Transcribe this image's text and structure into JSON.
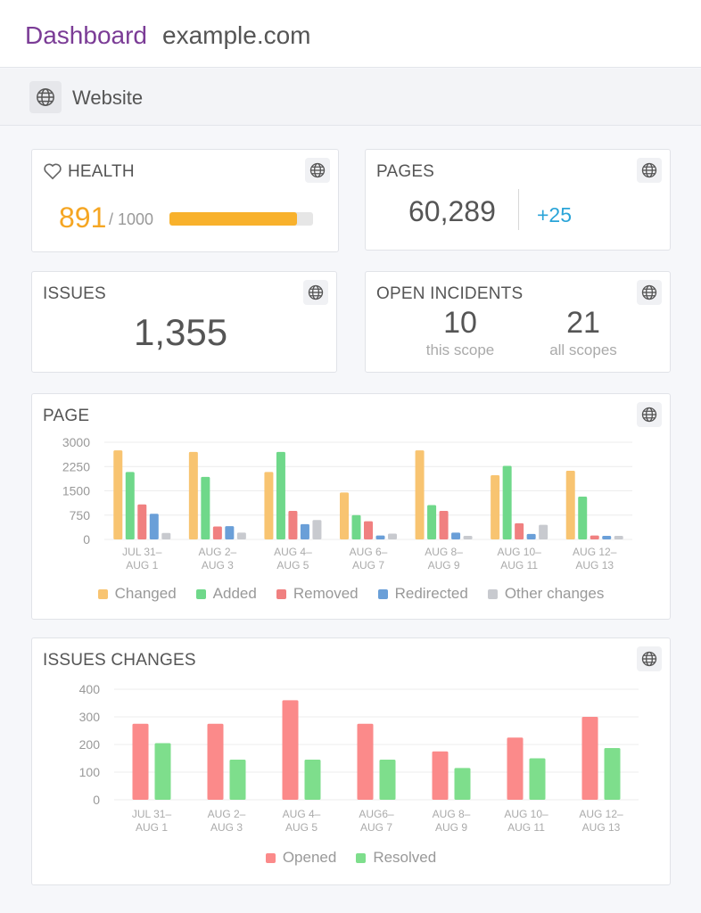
{
  "header": {
    "brand": "Dashboard",
    "domain": "example.com"
  },
  "subheader": {
    "label": "Website",
    "icon": "globe-icon"
  },
  "health": {
    "title": "HEALTH",
    "score": "891",
    "max_label": "/ 1000",
    "progress": 0.891,
    "color": "#f5a623",
    "icon": "heart-icon"
  },
  "pages": {
    "title": "PAGES",
    "count": "60,289",
    "delta": "+25"
  },
  "issues": {
    "title": "ISSUES",
    "count": "1,355"
  },
  "incidents": {
    "title": "OPEN INCIDENTS",
    "this_scope_value": "10",
    "this_scope_label": "this scope",
    "all_scopes_value": "21",
    "all_scopes_label": "all scopes"
  },
  "colors": {
    "changed": "#f8c471",
    "added": "#6fd88a",
    "removed": "#f08080",
    "redirected": "#6a9fd8",
    "other": "#c8cacf",
    "opened": "#fb8a8a",
    "resolved": "#7ede8c"
  },
  "chart_data": [
    {
      "type": "bar",
      "title": "PAGE",
      "categories": [
        [
          "JUL 31–",
          "AUG 1"
        ],
        [
          "AUG 2–",
          "AUG 3"
        ],
        [
          "AUG 4–",
          "AUG 5"
        ],
        [
          "AUG 6–",
          "AUG 7"
        ],
        [
          "AUG 8–",
          "AUG 9"
        ],
        [
          "AUG 10–",
          "AUG 11"
        ],
        [
          "AUG 12–",
          "AUG 13"
        ]
      ],
      "yticks": [
        "0",
        "750",
        "1500",
        "2250",
        "3000"
      ],
      "ylim": [
        0,
        3000
      ],
      "grid": true,
      "legend_position": "bottom",
      "series": [
        {
          "name": "Changed",
          "values": [
            2750,
            2700,
            2080,
            1450,
            2750,
            1980,
            2120
          ]
        },
        {
          "name": "Added",
          "values": [
            2080,
            1930,
            2700,
            750,
            1060,
            2270,
            1320
          ]
        },
        {
          "name": "Removed",
          "values": [
            1080,
            400,
            880,
            560,
            880,
            500,
            120
          ]
        },
        {
          "name": "Redirected",
          "values": [
            790,
            410,
            470,
            120,
            210,
            170,
            110
          ]
        },
        {
          "name": "Other changes",
          "values": [
            200,
            210,
            600,
            180,
            110,
            450,
            110
          ]
        }
      ]
    },
    {
      "type": "bar",
      "title": "ISSUES CHANGES",
      "categories": [
        [
          "JUL 31–",
          "AUG 1"
        ],
        [
          "AUG 2–",
          "AUG 3"
        ],
        [
          "AUG 4–",
          "AUG 5"
        ],
        [
          "AUG6–",
          "AUG 7"
        ],
        [
          "AUG 8–",
          "AUG 9"
        ],
        [
          "AUG 10–",
          "AUG 11"
        ],
        [
          "AUG 12–",
          "AUG 13"
        ]
      ],
      "yticks": [
        "0",
        "100",
        "200",
        "300",
        "400"
      ],
      "ylim": [
        0,
        400
      ],
      "grid": true,
      "legend_position": "bottom",
      "series": [
        {
          "name": "Opened",
          "values": [
            275,
            275,
            360,
            275,
            175,
            225,
            300
          ]
        },
        {
          "name": "Resolved",
          "values": [
            205,
            145,
            145,
            145,
            115,
            150,
            187
          ]
        }
      ]
    }
  ]
}
